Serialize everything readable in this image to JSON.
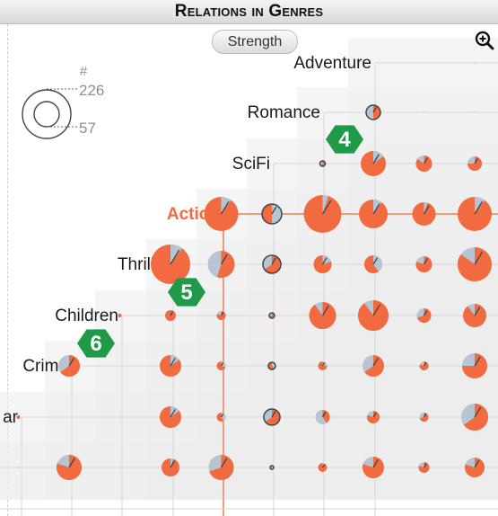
{
  "title": "Relations in Genres",
  "toolbar": {
    "strength_label": "Strength",
    "zoom_icon": "zoom-in-icon"
  },
  "size_legend": {
    "header": "#",
    "max_label": "226",
    "min_label": "57"
  },
  "colors": {
    "accent": "#f26a3f",
    "neutral": "#b7c5d3",
    "highlight_line": "#f49a7a",
    "badge": "#1e9a48",
    "grid": "#d6d6d6",
    "staircase": "#ededed"
  },
  "chart_data": {
    "type": "matrix-pie",
    "title": "Relations in Genres",
    "highlighted_row": "Action",
    "genres": [
      "Adventure",
      "Romance",
      "SciFi",
      "Action",
      "Thriller",
      "Children",
      "Crime",
      "ar",
      ""
    ],
    "badges": [
      {
        "label": "4",
        "near": "SciFi"
      },
      {
        "label": "5",
        "near": "Thriller"
      },
      {
        "label": "6",
        "near": "Children"
      }
    ],
    "cells": [
      {
        "row": "Adventure",
        "col": 1,
        "size": 12,
        "share": 0.3,
        "color": "neutral"
      },
      {
        "row": "Adventure",
        "col": 2,
        "size": 11,
        "share": 0.15,
        "color": "neutral"
      },
      {
        "row": "Romance",
        "col": -2,
        "size": 8,
        "share": 0.5,
        "color": "neutral",
        "ring": true
      },
      {
        "row": "Romance",
        "col": 1,
        "size": 26,
        "share": 0.03,
        "color": "neutral",
        "ring": true
      },
      {
        "row": "Romance",
        "col": 2,
        "size": 26,
        "share": 0.03,
        "color": "neutral",
        "ring": true
      },
      {
        "row": "SciFi",
        "col": -3,
        "size": 3,
        "share": 0.4,
        "color": "neutral",
        "ring": true
      },
      {
        "row": "SciFi",
        "col": -2,
        "size": 14,
        "share": 0.85,
        "color": "accent"
      },
      {
        "row": "SciFi",
        "col": -1,
        "size": 9,
        "share": 0.15,
        "color": "neutral"
      },
      {
        "row": "SciFi",
        "col": 0,
        "size": 8,
        "share": 0.25,
        "color": "neutral"
      },
      {
        "row": "SciFi",
        "col": 1,
        "size": 8,
        "share": 0.15,
        "color": "neutral"
      },
      {
        "row": "SciFi",
        "col": 2,
        "size": 8,
        "share": 0.15,
        "color": "neutral"
      },
      {
        "row": "Action",
        "col": -5,
        "size": 19,
        "share": 0.9,
        "color": "accent"
      },
      {
        "row": "Action",
        "col": -4,
        "size": 11,
        "share": 0.5,
        "color": "accent",
        "ring": true
      },
      {
        "row": "Action",
        "col": -3,
        "size": 21,
        "share": 0.95,
        "color": "accent"
      },
      {
        "row": "Action",
        "col": -2,
        "size": 16,
        "share": 0.9,
        "color": "accent"
      },
      {
        "row": "Action",
        "col": -1,
        "size": 13,
        "share": 0.95,
        "color": "accent"
      },
      {
        "row": "Action",
        "col": 0,
        "size": 19,
        "share": 0.9,
        "color": "accent"
      },
      {
        "row": "Thriller",
        "col": -6,
        "size": 22,
        "share": 0.9,
        "color": "accent"
      },
      {
        "row": "Thriller",
        "col": -5,
        "size": 15,
        "share": 0.45,
        "color": "neutral"
      },
      {
        "row": "Thriller",
        "col": -4,
        "size": 10,
        "share": 0.35,
        "color": "neutral",
        "ring": true
      },
      {
        "row": "Thriller",
        "col": -3,
        "size": 10,
        "share": 0.8,
        "color": "accent"
      },
      {
        "row": "Thriller",
        "col": -2,
        "size": 10,
        "share": 0.6,
        "color": "accent"
      },
      {
        "row": "Thriller",
        "col": -1,
        "size": 9,
        "share": 0.2,
        "color": "neutral"
      },
      {
        "row": "Thriller",
        "col": 0,
        "size": 19,
        "share": 0.15,
        "color": "neutral"
      },
      {
        "row": "Children",
        "col": -7,
        "size": 2,
        "share": 1,
        "color": "accent"
      },
      {
        "row": "Children",
        "col": -6,
        "size": 6,
        "share": 1,
        "color": "accent"
      },
      {
        "row": "Children",
        "col": -5,
        "size": 5,
        "share": 0.2,
        "color": "neutral"
      },
      {
        "row": "Children",
        "col": -4,
        "size": 3,
        "share": 0.3,
        "color": "neutral",
        "ring": true
      },
      {
        "row": "Children",
        "col": -3,
        "size": 15,
        "share": 0.1,
        "color": "neutral"
      },
      {
        "row": "Children",
        "col": -2,
        "size": 17,
        "share": 0.1,
        "color": "neutral"
      },
      {
        "row": "Children",
        "col": -1,
        "size": 8,
        "share": 0.3,
        "color": "neutral"
      },
      {
        "row": "Children",
        "col": 0,
        "size": 13,
        "share": 0.1,
        "color": "neutral"
      },
      {
        "row": "Crime",
        "col": -8,
        "size": 12,
        "share": 0.35,
        "color": "neutral"
      },
      {
        "row": "Crime",
        "col": -6,
        "size": 12,
        "share": 0.85,
        "color": "accent"
      },
      {
        "row": "Crime",
        "col": -5,
        "size": 5,
        "share": 0.7,
        "color": "accent"
      },
      {
        "row": "Crime",
        "col": -4,
        "size": 4,
        "share": 0.6,
        "color": "accent",
        "ring": true
      },
      {
        "row": "Crime",
        "col": -3,
        "size": 5,
        "share": 0.75,
        "color": "accent"
      },
      {
        "row": "Crime",
        "col": -2,
        "size": 12,
        "share": 0.35,
        "color": "neutral"
      },
      {
        "row": "Crime",
        "col": -1,
        "size": 5,
        "share": 0.2,
        "color": "neutral"
      },
      {
        "row": "Crime",
        "col": 0,
        "size": 14,
        "share": 0.25,
        "color": "neutral"
      },
      {
        "row": "ar",
        "col": -9,
        "size": 2,
        "share": 1,
        "color": "accent"
      },
      {
        "row": "ar",
        "col": -6,
        "size": 12,
        "share": 0.85,
        "color": "accent"
      },
      {
        "row": "ar",
        "col": -5,
        "size": 5,
        "share": 0.6,
        "color": "accent"
      },
      {
        "row": "ar",
        "col": -4,
        "size": 9,
        "share": 0.35,
        "color": "neutral",
        "ring": true
      },
      {
        "row": "ar",
        "col": -3,
        "size": 8,
        "share": 0.6,
        "color": "neutral"
      },
      {
        "row": "ar",
        "col": -2,
        "size": 7,
        "share": 0.2,
        "color": "neutral"
      },
      {
        "row": "ar",
        "col": -1,
        "size": 5,
        "share": 0.3,
        "color": "neutral"
      },
      {
        "row": "ar",
        "col": 0,
        "size": 15,
        "share": 0.35,
        "color": "neutral"
      },
      {
        "row": "",
        "col": -10,
        "size": 3,
        "share": 1,
        "color": "accent"
      },
      {
        "row": "",
        "col": -9,
        "size": 1,
        "share": 1,
        "color": "neutral"
      },
      {
        "row": "",
        "col": -8,
        "size": 14,
        "share": 0.2,
        "color": "neutral"
      },
      {
        "row": "",
        "col": -6,
        "size": 10,
        "share": 0.95,
        "color": "accent"
      },
      {
        "row": "",
        "col": -5,
        "size": 14,
        "share": 0.3,
        "color": "neutral"
      },
      {
        "row": "",
        "col": -4,
        "size": 2,
        "share": 0.3,
        "color": "neutral",
        "ring": true
      },
      {
        "row": "",
        "col": -3,
        "size": 5,
        "share": 0.9,
        "color": "accent"
      },
      {
        "row": "",
        "col": -2,
        "size": 12,
        "share": 0.2,
        "color": "neutral"
      },
      {
        "row": "",
        "col": -1,
        "size": 6,
        "share": 0.2,
        "color": "neutral"
      },
      {
        "row": "",
        "col": 0,
        "size": 11,
        "share": 0.2,
        "color": "neutral"
      }
    ]
  }
}
